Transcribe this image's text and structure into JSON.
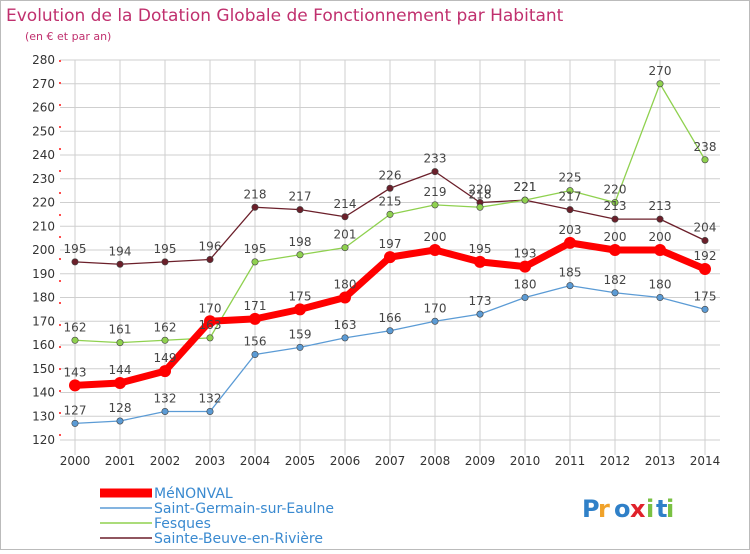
{
  "chart_data": {
    "type": "line",
    "title": "Evolution de la Dotation Globale de Fonctionnement par Habitant",
    "subtitle": "(en € et par an)",
    "x": [
      "2000",
      "2001",
      "2002",
      "2003",
      "2004",
      "2005",
      "2006",
      "2007",
      "2008",
      "2009",
      "2010",
      "2011",
      "2012",
      "2013",
      "2014"
    ],
    "ylim": [
      120,
      280
    ],
    "yticks": [
      120,
      130,
      140,
      150,
      160,
      170,
      180,
      190,
      200,
      210,
      220,
      230,
      240,
      250,
      260,
      270,
      280
    ],
    "grid": true,
    "legend_position": "bottom-left",
    "series": [
      {
        "name": "Sainte-Beuve-en-Rivière",
        "color": "#6b1f2a",
        "width": 1.3,
        "values": [
          195,
          194,
          195,
          196,
          218,
          217,
          214,
          226,
          233,
          220,
          221,
          217,
          213,
          213,
          204
        ]
      },
      {
        "name": "Fesques",
        "color": "#8fd14f",
        "width": 1.3,
        "values": [
          162,
          161,
          162,
          163,
          195,
          198,
          201,
          215,
          219,
          218,
          221,
          225,
          220,
          270,
          238
        ]
      },
      {
        "name": "Saint-Germain-sur-Eaulne",
        "color": "#5b9bd5",
        "width": 1.3,
        "values": [
          127,
          128,
          132,
          132,
          156,
          159,
          163,
          166,
          170,
          173,
          180,
          185,
          182,
          180,
          175
        ]
      },
      {
        "name": "MéNONVAL",
        "color": "#ff0000",
        "width": 7,
        "values": [
          143,
          144,
          149,
          170,
          171,
          175,
          180,
          197,
          200,
          195,
          193,
          203,
          200,
          200,
          192
        ]
      }
    ],
    "legend_order": [
      "MéNONVAL",
      "Saint-Germain-sur-Eaulne",
      "Fesques",
      "Sainte-Beuve-en-Rivière"
    ]
  },
  "logo": {
    "text": "Proxiti"
  },
  "colors": {
    "title": "#c0306e",
    "grid": "#cfcfcf",
    "axis_text": "#333333",
    "label_text": "#444444"
  }
}
